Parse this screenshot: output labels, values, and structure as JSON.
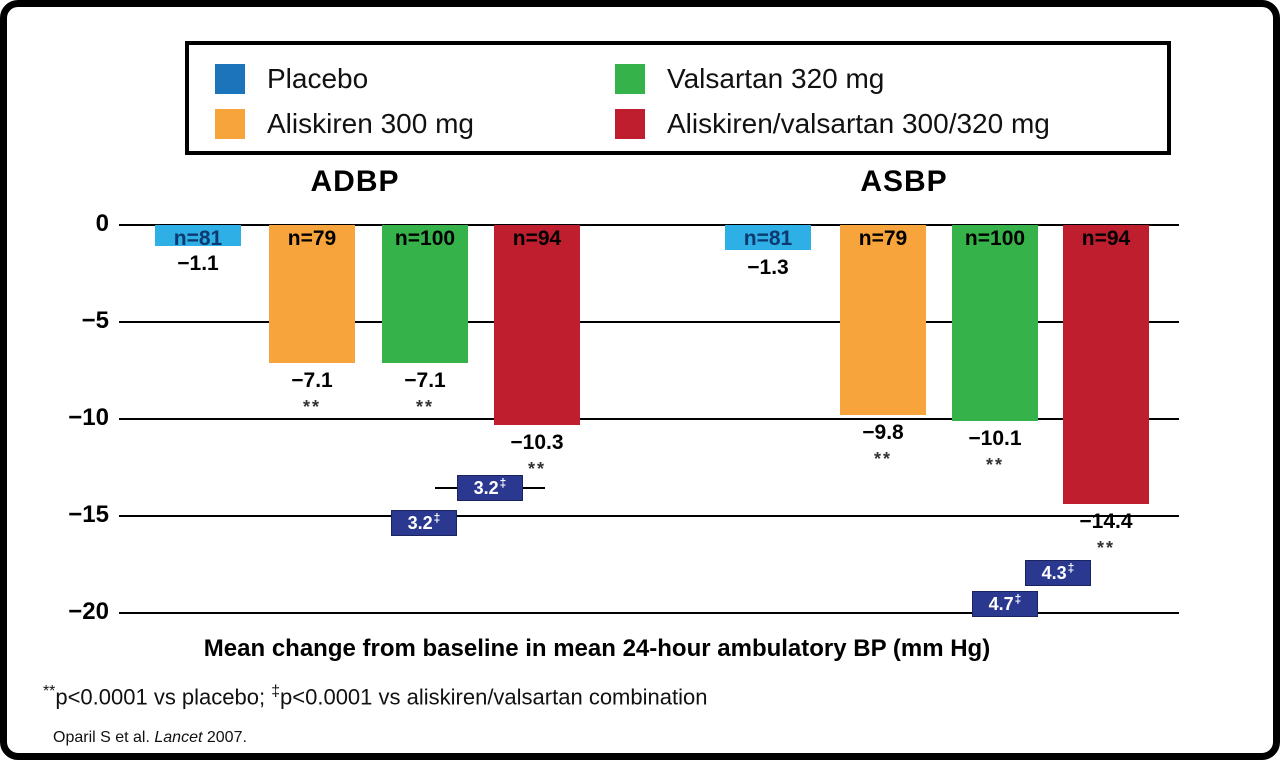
{
  "figure": {
    "footnote_parts": [
      {
        "sup": "**"
      },
      {
        "text": "p<0.0001 vs placebo; "
      },
      {
        "sup": "‡"
      },
      {
        "text": "p<0.0001 vs aliskiren/valsartan combination"
      }
    ],
    "citation_parts": [
      {
        "text": "Oparil S et al. "
      },
      {
        "italic": "Lancet"
      },
      {
        "text": " 2007."
      }
    ]
  },
  "legend": {
    "items": [
      {
        "label": "Placebo",
        "color": "#1c75bb"
      },
      {
        "label": "Valsartan 320 mg",
        "color": "#36b24a"
      },
      {
        "label": "Aliskiren 300 mg",
        "color": "#f8a43c"
      },
      {
        "label": "Aliskiren/valsartan 300/320 mg",
        "color": "#bf1e2e"
      }
    ]
  },
  "chart_data": {
    "type": "bar",
    "title": "",
    "caption": "Mean change from baseline in mean 24-hour ambulatory BP (mm Hg)",
    "ylim": [
      -20,
      0
    ],
    "grid": true,
    "legend_position": "top",
    "yticks": [
      {
        "value": 0,
        "label": "0"
      },
      {
        "value": -5,
        "label": "−5"
      },
      {
        "value": -10,
        "label": "−10"
      },
      {
        "value": -15,
        "label": "−15"
      },
      {
        "value": -20,
        "label": "−20"
      }
    ],
    "bar_colors": {
      "Placebo": "#2eafe5",
      "Aliskiren 300 mg": "#f8a43c",
      "Valsartan 320 mg": "#36b24a",
      "Aliskiren/valsartan 300/320 mg": "#bf1e2e"
    },
    "n_label_colors": {
      "Placebo": "#0c3a70",
      "default": "#000000"
    },
    "diff_box_color": "#2a3890",
    "groups": [
      {
        "name": "ADBP",
        "bars": [
          {
            "series": "Placebo",
            "n": 81,
            "n_label": "n=81",
            "value": -1.1,
            "value_label": "−1.1",
            "sig": ""
          },
          {
            "series": "Aliskiren 300 mg",
            "n": 79,
            "n_label": "n=79",
            "value": -7.1,
            "value_label": "−7.1",
            "sig": "**"
          },
          {
            "series": "Valsartan 320 mg",
            "n": 100,
            "n_label": "n=100",
            "value": -7.1,
            "value_label": "−7.1",
            "sig": "**"
          },
          {
            "series": "Aliskiren/valsartan 300/320 mg",
            "n": 94,
            "n_label": "n=94",
            "value": -10.3,
            "value_label": "−10.3",
            "sig": "**"
          }
        ]
      },
      {
        "name": "ASBP",
        "bars": [
          {
            "series": "Placebo",
            "n": 81,
            "n_label": "n=81",
            "value": -1.3,
            "value_label": "−1.3",
            "sig": ""
          },
          {
            "series": "Aliskiren 300 mg",
            "n": 79,
            "n_label": "n=79",
            "value": -9.8,
            "value_label": "−9.8",
            "sig": "**"
          },
          {
            "series": "Valsartan 320 mg",
            "n": 100,
            "n_label": "n=100",
            "value": -10.1,
            "value_label": "−10.1",
            "sig": "**"
          },
          {
            "series": "Aliskiren/valsartan 300/320 mg",
            "n": 94,
            "n_label": "n=94",
            "value": -14.4,
            "value_label": "−14.4",
            "sig": "**"
          }
        ]
      }
    ],
    "difference_markers": [
      {
        "label": "3.2",
        "flag": "‡",
        "group": "ADBP"
      },
      {
        "label": "3.2",
        "flag": "‡",
        "group": "ADBP"
      },
      {
        "label": "4.3",
        "flag": "‡",
        "group": "ASBP"
      },
      {
        "label": "4.7",
        "flag": "‡",
        "group": "ASBP"
      }
    ]
  }
}
